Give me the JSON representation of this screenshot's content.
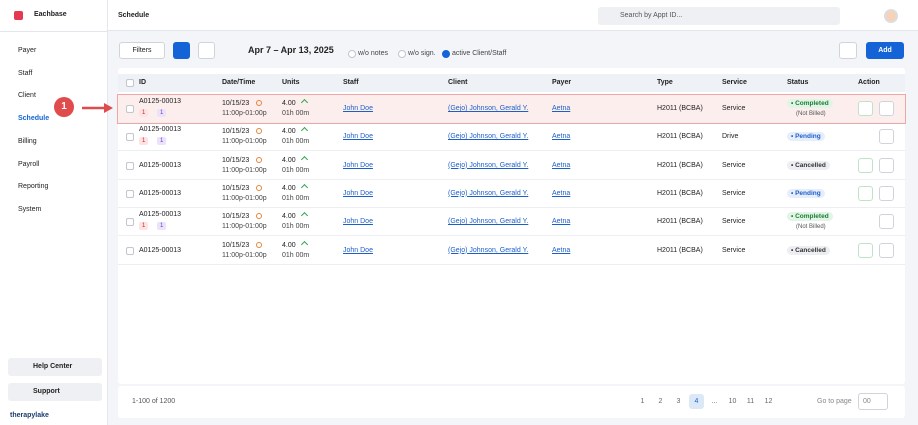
{
  "brand": "Eachbase",
  "nav": [
    "Payer",
    "Staff",
    "Client",
    "Schedule",
    "Billing",
    "Payroll",
    "Reporting",
    "System"
  ],
  "help": [
    "Help Center",
    "Support"
  ],
  "footer_brand": "therapylake",
  "header": {
    "title": "Schedule",
    "search_placeholder": "Search by Appt ID..."
  },
  "toolbar": {
    "filters": "Filters",
    "date_range": "Apr 7 – Apr 13, 2025",
    "checks": [
      "w/o notes",
      "w/o sign.",
      "active Client/Staff"
    ],
    "add": "Add"
  },
  "callout": 1,
  "table": {
    "columns": [
      "ID",
      "Date/Time",
      "Units",
      "Staff",
      "Client",
      "Payer",
      "Type",
      "Service",
      "Status",
      "Action"
    ],
    "rows": [
      {
        "id": "A0125-00013",
        "alerts": [
          1,
          1
        ],
        "date": "10/15/23",
        "time": "11:00p-01:00p",
        "units": "4.00",
        "duration": "01h 00m",
        "staff": "John Doe",
        "client": "(Gejo) Johnson, Gerald Y.",
        "payer": "Aetna",
        "type": "H2011 (BCBA)",
        "service": "Service",
        "status": "Completed",
        "status_note": "(Not Billed)"
      },
      {
        "id": "A0125-00013",
        "alerts": [
          1,
          1
        ],
        "date": "10/15/23",
        "time": "11:00p-01:00p",
        "units": "4.00",
        "duration": "01h 00m",
        "staff": "John Doe",
        "client": "(Gejo) Johnson, Gerald Y.",
        "payer": "Aetna",
        "type": "H2011 (BCBA)",
        "service": "Drive",
        "status": "Pending"
      },
      {
        "id": "A0125-00013",
        "date": "10/15/23",
        "time": "11:00p-01:00p",
        "units": "4.00",
        "duration": "01h 00m",
        "staff": "John Doe",
        "client": "(Gejo) Johnson, Gerald Y.",
        "payer": "Aetna",
        "type": "H2011 (BCBA)",
        "service": "Service",
        "status": "Cancelled"
      },
      {
        "id": "A0125-00013",
        "date": "10/15/23",
        "time": "11:00p-01:00p",
        "units": "4.00",
        "duration": "01h 00m",
        "staff": "John Doe",
        "client": "(Gejo) Johnson, Gerald Y.",
        "payer": "Aetna",
        "type": "H2011 (BCBA)",
        "service": "Service",
        "status": "Pending"
      },
      {
        "id": "A0125-00013",
        "alerts": [
          1,
          1
        ],
        "date": "10/15/23",
        "time": "11:00p-01:00p",
        "units": "4.00",
        "duration": "01h 00m",
        "staff": "John Doe",
        "client": "(Gejo) Johnson, Gerald Y.",
        "payer": "Aetna",
        "type": "H2011 (BCBA)",
        "service": "Service",
        "status": "Completed",
        "status_note": "(Not Billed)"
      },
      {
        "id": "A0125-00013",
        "date": "10/15/23",
        "time": "11:00p-01:00p",
        "units": "4.00",
        "duration": "01h 00m",
        "staff": "John Doe",
        "client": "(Gejo) Johnson, Gerald Y.",
        "payer": "Aetna",
        "type": "H2011 (BCBA)",
        "service": "Service",
        "status": "Cancelled"
      }
    ]
  },
  "pagination": {
    "summary": "1-100 of 1200",
    "pages": [
      1,
      2,
      3,
      4,
      "...",
      10,
      11,
      12
    ],
    "goto": "Go to page",
    "goto_value": "00"
  }
}
